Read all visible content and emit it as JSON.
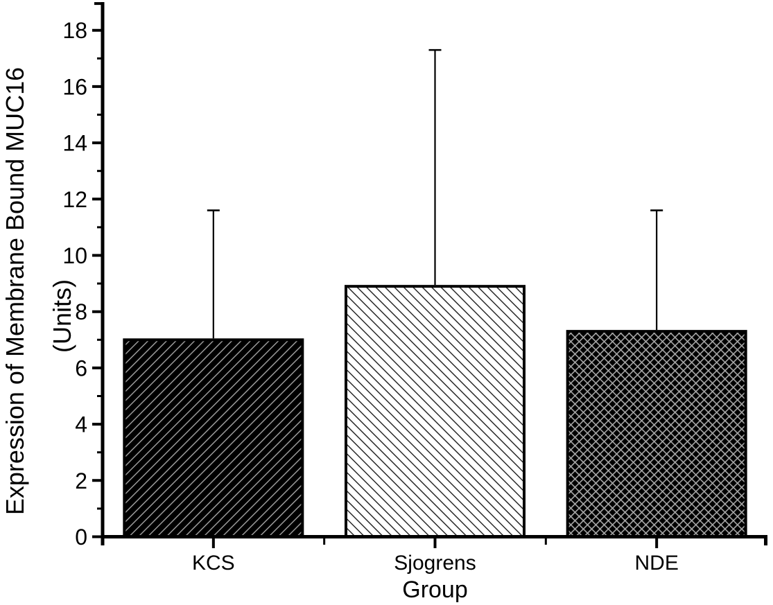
{
  "colors": {
    "foreground": "#000000",
    "background": "#ffffff",
    "hatch_light_on_black": "#9a9a9a",
    "hatch_dark_on_white": "#1c1c1c"
  },
  "chart_data": {
    "type": "bar",
    "title": "",
    "xlabel": "Group",
    "ylabel": "Expression of Membrane Bound MUC16",
    "ylabel_line2": "(Units)",
    "categories": [
      "KCS",
      "Sjogrens",
      "NDE"
    ],
    "values": [
      7.0,
      8.9,
      7.3
    ],
    "error_upper": [
      4.6,
      8.4,
      4.3
    ],
    "error_bar_tops": [
      11.6,
      17.3,
      11.6
    ],
    "ylim": [
      0,
      19
    ],
    "ytick_major": [
      0,
      2,
      4,
      6,
      8,
      10,
      12,
      14,
      16,
      18
    ],
    "ytick_minor": [
      1,
      3,
      5,
      7,
      9,
      11,
      13,
      15,
      17
    ],
    "bar_patterns": [
      "black-forward-diagonal-hatch",
      "white-back-diagonal-hatch",
      "black-crosshatch"
    ],
    "grid": false,
    "legend": "none"
  }
}
